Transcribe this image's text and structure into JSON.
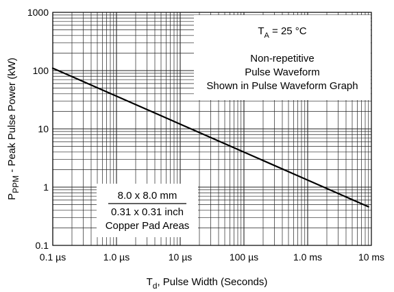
{
  "chart_data": {
    "type": "line",
    "x_scale": "log",
    "y_scale": "log",
    "xlim": [
      1e-07,
      0.01
    ],
    "ylim": [
      0.1,
      1000
    ],
    "grid": true,
    "x_ticks": [
      {
        "value": 1e-07,
        "label": "0.1 µs"
      },
      {
        "value": 1e-06,
        "label": "1.0 µs"
      },
      {
        "value": 1e-05,
        "label": "10 µs"
      },
      {
        "value": 0.0001,
        "label": "100 µs"
      },
      {
        "value": 0.001,
        "label": "1.0 ms"
      },
      {
        "value": 0.01,
        "label": "10 ms"
      }
    ],
    "y_ticks": [
      {
        "value": 0.1,
        "label": "0.1"
      },
      {
        "value": 1,
        "label": "1"
      },
      {
        "value": 10,
        "label": "10"
      },
      {
        "value": 100,
        "label": "100"
      },
      {
        "value": 1000,
        "label": "1000"
      }
    ],
    "xlabel": {
      "main": "T",
      "sub": "d",
      "rest": ", Pulse Width (Seconds)"
    },
    "ylabel": {
      "main": "P",
      "sub": "PPM",
      "rest": " - Peak Pulse Power (kW)"
    },
    "series": [
      {
        "x": [
          1e-07,
          0.009
        ],
        "y": [
          110,
          0.46
        ]
      }
    ],
    "annotations": {
      "conditions": {
        "temp_main": "T",
        "temp_sub": "A",
        "temp_rest": " = 25 °C",
        "lines": [
          "Non-repetitive",
          "Pulse Waveform",
          "Shown in Pulse Waveform Graph"
        ]
      },
      "pad": {
        "line1": "8.0 x 8.0 mm",
        "line2": "0.31 x 0.31 inch",
        "line3": "Copper Pad Areas"
      }
    },
    "colors": {
      "line": "#000000",
      "grid": "#222222",
      "background": "#ffffff"
    }
  }
}
